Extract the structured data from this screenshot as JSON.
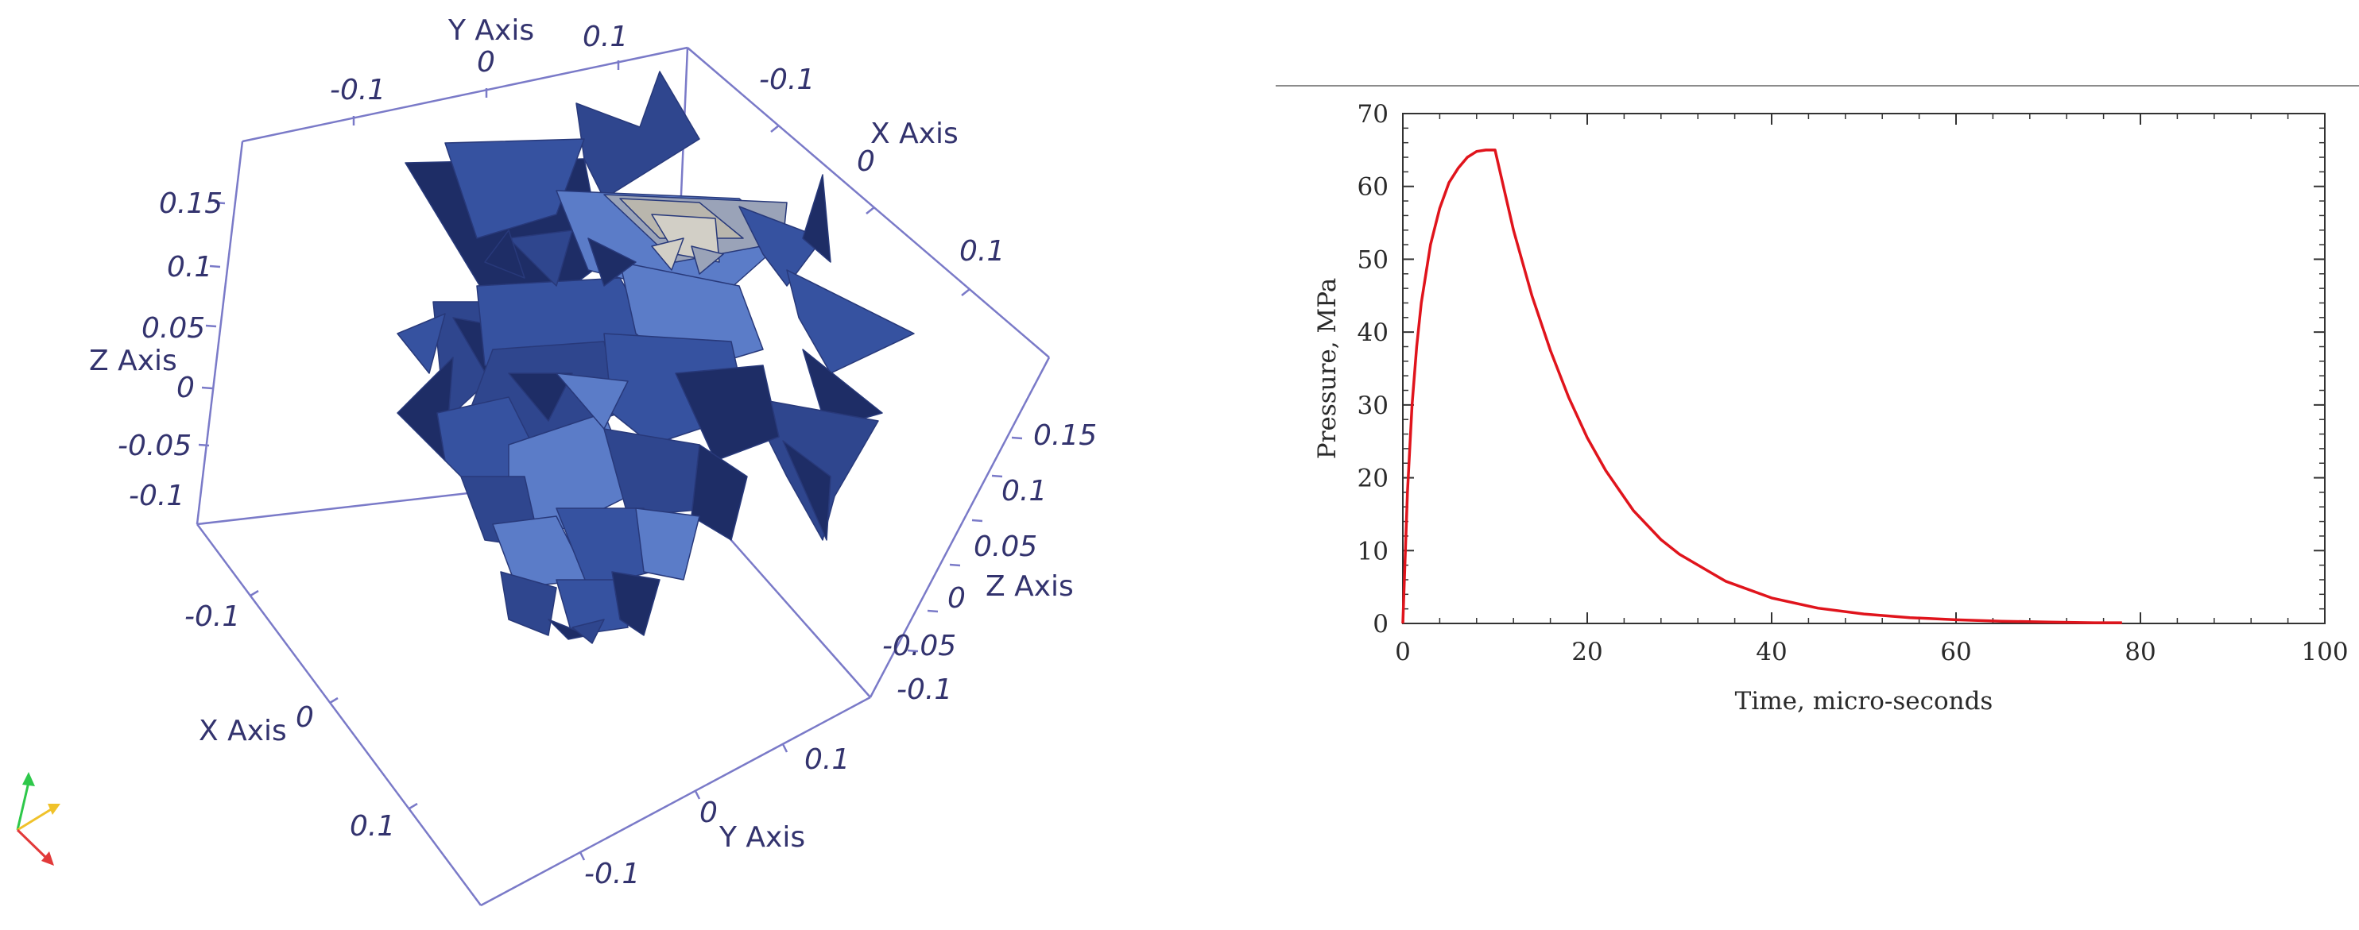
{
  "colors": {
    "frame": "#7a7ac8",
    "axis_text": "#33336e",
    "mesh_dark": "#1e2d66",
    "mesh_mid": "#3652a0",
    "mesh_light": "#5b7cc8",
    "mesh_highlight": "#b9b6ad",
    "curve": "#e0141c",
    "orient_x": "#e23a3a",
    "orient_y": "#f0c22a",
    "orient_z": "#2ec84a"
  },
  "scene3d": {
    "type": "3d mesh view",
    "axis_names": {
      "y_top": "Y Axis",
      "x_right": "X Axis",
      "z_left": "Z Axis",
      "z_right": "Z Axis",
      "x_bottom": "X Axis",
      "y_bottom": "Y Axis"
    },
    "tick_labels": {
      "y_top": [
        "-0.1",
        "0",
        "0.1"
      ],
      "x_right": [
        "-0.1",
        "0",
        "0.1"
      ],
      "z_left": [
        "0.15",
        "0.1",
        "0.05",
        "0",
        "-0.05",
        "-0.1"
      ],
      "z_right": [
        "0.15",
        "0.1",
        "0.05",
        "0",
        "-0.05",
        "-0.1"
      ],
      "x_bottom": [
        "-0.1",
        "0",
        "0.1"
      ],
      "y_bottom": [
        "0.1",
        "0",
        "-0.1"
      ]
    }
  },
  "chart_data": {
    "type": "line",
    "title": "",
    "xlabel": "Time, micro-seconds",
    "ylabel": "Pressure, MPa",
    "xlim": [
      0,
      100
    ],
    "ylim": [
      0,
      70
    ],
    "xticks": [
      "0",
      "20",
      "40",
      "60",
      "80",
      "100"
    ],
    "yticks": [
      "0",
      "10",
      "20",
      "30",
      "40",
      "50",
      "60",
      "70"
    ],
    "grid": false,
    "series": [
      {
        "color": "#e0141c",
        "x": [
          0,
          0.5,
          1,
          1.5,
          2,
          3,
          4,
          5,
          6,
          7,
          8,
          9,
          10,
          12,
          14,
          16,
          18,
          20,
          22,
          25,
          28,
          30,
          35,
          40,
          45,
          50,
          55,
          60,
          65,
          70,
          75,
          78
        ],
        "y": [
          0,
          18,
          30,
          38,
          44,
          52,
          57,
          60.5,
          62.5,
          64,
          64.8,
          65,
          65,
          54,
          45,
          37.5,
          31,
          25.5,
          21,
          15.5,
          11.5,
          9.5,
          5.8,
          3.5,
          2.1,
          1.3,
          0.8,
          0.5,
          0.3,
          0.2,
          0.1,
          0.1
        ]
      }
    ]
  }
}
